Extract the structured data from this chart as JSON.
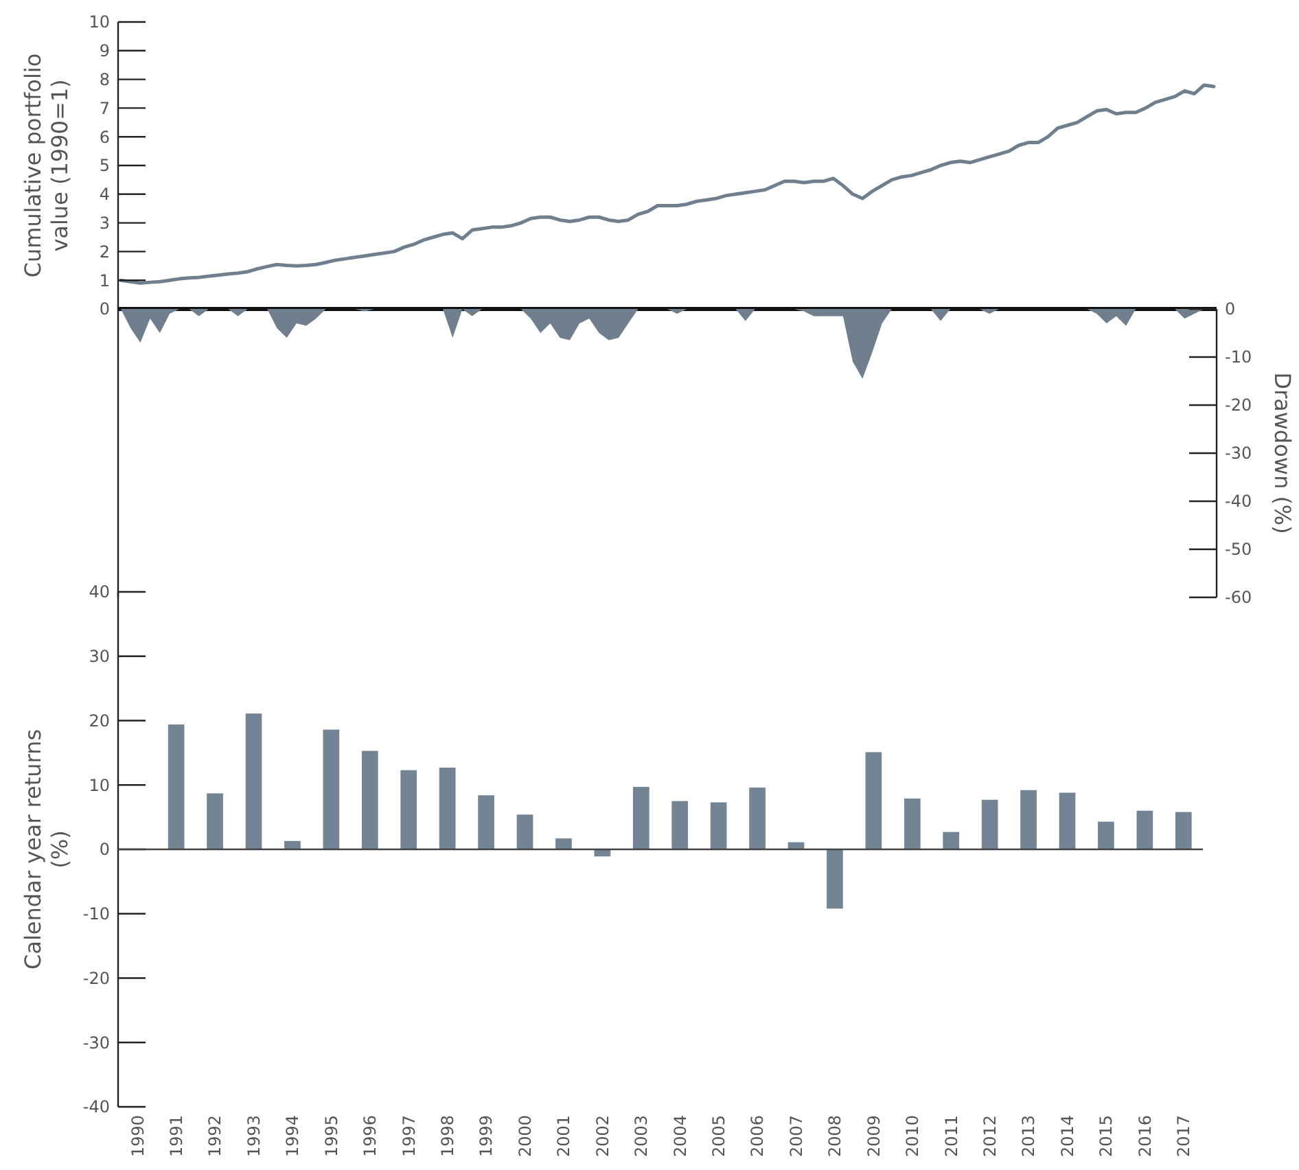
{
  "chart_data": [
    {
      "type": "line",
      "ylabel": "Cumulative portfolio value (1990=1)",
      "tick_labels": "y",
      "ylim": [
        0,
        10
      ],
      "yticks": [
        0,
        1,
        2,
        3,
        4,
        5,
        6,
        7,
        8,
        9,
        10
      ],
      "categories": [
        null,
        null,
        null,
        null,
        null,
        null,
        null,
        null,
        null,
        null,
        null,
        null,
        null,
        null,
        null,
        null,
        null,
        null,
        null,
        null,
        null,
        null,
        null,
        null,
        null,
        null,
        null,
        null,
        null,
        null,
        null,
        null,
        null,
        null,
        null,
        null,
        null,
        null,
        null,
        null,
        null,
        null,
        null,
        null,
        null,
        null,
        null,
        null,
        null,
        null,
        null,
        null,
        null,
        null,
        null,
        null,
        null,
        null,
        null,
        null,
        null,
        null,
        null,
        null,
        null,
        null,
        null,
        null,
        null,
        null,
        null,
        null,
        null,
        null,
        null,
        null,
        null,
        null,
        null,
        null,
        null,
        null,
        null,
        null,
        null,
        null,
        null,
        null,
        null,
        null,
        null,
        null,
        null,
        null,
        null,
        null,
        null,
        null,
        null,
        null,
        null,
        null,
        null,
        null,
        null,
        null,
        null,
        null,
        null,
        null,
        null,
        null,
        null
      ],
      "series": [
        {
          "color": "#6f7f8e",
          "values": [
            1.0,
            0.95,
            0.9,
            0.93,
            0.95,
            1.0,
            1.05,
            1.08,
            1.1,
            1.14,
            1.18,
            1.22,
            1.25,
            1.3,
            1.4,
            1.48,
            1.55,
            1.52,
            1.5,
            1.52,
            1.55,
            1.62,
            1.7,
            1.75,
            1.8,
            1.85,
            1.9,
            1.95,
            2.0,
            2.15,
            2.25,
            2.4,
            2.5,
            2.6,
            2.65,
            2.45,
            2.75,
            2.8,
            2.85,
            2.85,
            2.9,
            3.0,
            3.15,
            3.2,
            3.2,
            3.1,
            3.05,
            3.1,
            3.2,
            3.2,
            3.1,
            3.05,
            3.1,
            3.3,
            3.4,
            3.6,
            3.6,
            3.6,
            3.65,
            3.75,
            3.8,
            3.85,
            3.95,
            4.0,
            4.05,
            4.1,
            4.15,
            4.3,
            4.45,
            4.45,
            4.4,
            4.45,
            4.45,
            4.55,
            4.3,
            4.0,
            3.85,
            4.1,
            4.3,
            4.5,
            4.6,
            4.65,
            4.75,
            4.85,
            5.0,
            5.1,
            5.15,
            5.1,
            5.2,
            5.3,
            5.4,
            5.5,
            5.7,
            5.8,
            5.8,
            6.0,
            6.3,
            6.4,
            6.5,
            6.7,
            6.9,
            6.95,
            6.8,
            6.85,
            6.85,
            7.0,
            7.2,
            7.3,
            7.4,
            7.6,
            7.5,
            7.8,
            7.75
          ]
        }
      ]
    },
    {
      "type": "area",
      "ylabel": "Drawdown (%)",
      "tick_labels": "y",
      "ylim": [
        -60,
        0
      ],
      "yticks": [
        0,
        -10,
        -20,
        -30,
        -40,
        -50,
        -60
      ],
      "categories": [
        null,
        null,
        null,
        null,
        null,
        null,
        null,
        null,
        null,
        null,
        null,
        null,
        null,
        null,
        null,
        null,
        null,
        null,
        null,
        null,
        null,
        null,
        null,
        null,
        null,
        null,
        null,
        null,
        null,
        null,
        null,
        null,
        null,
        null,
        null,
        null,
        null,
        null,
        null,
        null,
        null,
        null,
        null,
        null,
        null,
        null,
        null,
        null,
        null,
        null,
        null,
        null,
        null,
        null,
        null,
        null,
        null,
        null,
        null,
        null,
        null,
        null,
        null,
        null,
        null,
        null,
        null,
        null,
        null,
        null,
        null,
        null,
        null,
        null,
        null,
        null,
        null,
        null,
        null,
        null,
        null,
        null,
        null,
        null,
        null,
        null,
        null,
        null,
        null,
        null,
        null,
        null,
        null,
        null,
        null,
        null,
        null,
        null,
        null,
        null,
        null,
        null,
        null,
        null,
        null,
        null,
        null,
        null,
        null,
        null,
        null,
        null,
        null
      ],
      "series": [
        {
          "color": "#6f7f8e",
          "values": [
            0,
            -4,
            -7,
            -2,
            -5,
            -1,
            0,
            0,
            -1.5,
            0,
            0,
            0,
            -1.5,
            0,
            0,
            0,
            -4,
            -6,
            -3,
            -3.5,
            -2,
            0,
            0,
            0,
            0,
            -0.5,
            0,
            0,
            0,
            0,
            0,
            0,
            0,
            0,
            -6,
            0,
            -1.5,
            0,
            0,
            0,
            0,
            0,
            -2,
            -5,
            -3,
            -6,
            -6.5,
            -3,
            -2,
            -5,
            -6.5,
            -6,
            -3,
            0,
            0,
            0,
            0,
            -1,
            0,
            0,
            0,
            0,
            0,
            0,
            -2.5,
            0,
            0,
            0,
            0,
            0,
            -0.5,
            -1.5,
            -1.5,
            -1.5,
            -1.5,
            -11,
            -14.5,
            -9,
            -3,
            0,
            0,
            0,
            0,
            0,
            -2.5,
            0,
            0,
            0,
            0,
            -1,
            0,
            0,
            0,
            0,
            0,
            0,
            0,
            0,
            0,
            0,
            -1,
            -3,
            -1.5,
            -3.5,
            0,
            0,
            0,
            0,
            0,
            -2,
            -1,
            0,
            0
          ]
        }
      ]
    },
    {
      "type": "bar",
      "ylabel": "Calendar year returns (%)",
      "ylim": [
        -40,
        40
      ],
      "yticks": [
        -40,
        -30,
        -20,
        -10,
        0,
        10,
        20,
        30,
        40
      ],
      "categories": [
        "1990",
        "1991",
        "1992",
        "1993",
        "1994",
        "1995",
        "1996",
        "1997",
        "1998",
        "1999",
        "2000",
        "2001",
        "2002",
        "2003",
        "2004",
        "2005",
        "2006",
        "2007",
        "2008",
        "2009",
        "2010",
        "2011",
        "2012",
        "2013",
        "2014",
        "2015",
        "2016",
        "2017"
      ],
      "values": [
        null,
        19.4,
        8.7,
        21.1,
        1.3,
        18.6,
        15.3,
        12.3,
        12.7,
        8.4,
        5.4,
        1.7,
        -1.1,
        9.7,
        7.5,
        7.3,
        9.6,
        1.1,
        -9.2,
        15.1,
        7.9,
        2.7,
        7.7,
        9.2,
        8.8,
        4.3,
        6.0,
        5.8
      ],
      "color": "#738594"
    }
  ]
}
